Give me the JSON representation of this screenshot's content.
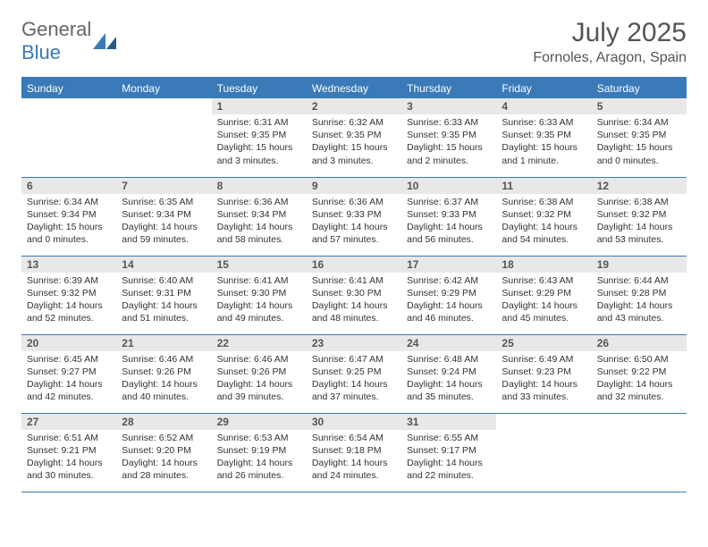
{
  "brand": {
    "general": "General",
    "blue": "Blue"
  },
  "title": "July 2025",
  "location": "Fornoles, Aragon, Spain",
  "colors": {
    "primary": "#3a7ab8",
    "daynum_bg": "#e8e8e8",
    "text": "#333333",
    "title_text": "#555555",
    "background": "#ffffff"
  },
  "typography": {
    "title_fontsize": 30,
    "location_fontsize": 16,
    "dayheader_fontsize": 12,
    "daynum_fontsize": 12,
    "cell_fontsize": 10.5
  },
  "calendar": {
    "type": "table",
    "columns": [
      "Sunday",
      "Monday",
      "Tuesday",
      "Wednesday",
      "Thursday",
      "Friday",
      "Saturday"
    ],
    "first_weekday_index": 2,
    "days": [
      {
        "n": 1,
        "sunrise": "6:31 AM",
        "sunset": "9:35 PM",
        "daylight": "15 hours and 3 minutes."
      },
      {
        "n": 2,
        "sunrise": "6:32 AM",
        "sunset": "9:35 PM",
        "daylight": "15 hours and 3 minutes."
      },
      {
        "n": 3,
        "sunrise": "6:33 AM",
        "sunset": "9:35 PM",
        "daylight": "15 hours and 2 minutes."
      },
      {
        "n": 4,
        "sunrise": "6:33 AM",
        "sunset": "9:35 PM",
        "daylight": "15 hours and 1 minute."
      },
      {
        "n": 5,
        "sunrise": "6:34 AM",
        "sunset": "9:35 PM",
        "daylight": "15 hours and 0 minutes."
      },
      {
        "n": 6,
        "sunrise": "6:34 AM",
        "sunset": "9:34 PM",
        "daylight": "15 hours and 0 minutes."
      },
      {
        "n": 7,
        "sunrise": "6:35 AM",
        "sunset": "9:34 PM",
        "daylight": "14 hours and 59 minutes."
      },
      {
        "n": 8,
        "sunrise": "6:36 AM",
        "sunset": "9:34 PM",
        "daylight": "14 hours and 58 minutes."
      },
      {
        "n": 9,
        "sunrise": "6:36 AM",
        "sunset": "9:33 PM",
        "daylight": "14 hours and 57 minutes."
      },
      {
        "n": 10,
        "sunrise": "6:37 AM",
        "sunset": "9:33 PM",
        "daylight": "14 hours and 56 minutes."
      },
      {
        "n": 11,
        "sunrise": "6:38 AM",
        "sunset": "9:32 PM",
        "daylight": "14 hours and 54 minutes."
      },
      {
        "n": 12,
        "sunrise": "6:38 AM",
        "sunset": "9:32 PM",
        "daylight": "14 hours and 53 minutes."
      },
      {
        "n": 13,
        "sunrise": "6:39 AM",
        "sunset": "9:32 PM",
        "daylight": "14 hours and 52 minutes."
      },
      {
        "n": 14,
        "sunrise": "6:40 AM",
        "sunset": "9:31 PM",
        "daylight": "14 hours and 51 minutes."
      },
      {
        "n": 15,
        "sunrise": "6:41 AM",
        "sunset": "9:30 PM",
        "daylight": "14 hours and 49 minutes."
      },
      {
        "n": 16,
        "sunrise": "6:41 AM",
        "sunset": "9:30 PM",
        "daylight": "14 hours and 48 minutes."
      },
      {
        "n": 17,
        "sunrise": "6:42 AM",
        "sunset": "9:29 PM",
        "daylight": "14 hours and 46 minutes."
      },
      {
        "n": 18,
        "sunrise": "6:43 AM",
        "sunset": "9:29 PM",
        "daylight": "14 hours and 45 minutes."
      },
      {
        "n": 19,
        "sunrise": "6:44 AM",
        "sunset": "9:28 PM",
        "daylight": "14 hours and 43 minutes."
      },
      {
        "n": 20,
        "sunrise": "6:45 AM",
        "sunset": "9:27 PM",
        "daylight": "14 hours and 42 minutes."
      },
      {
        "n": 21,
        "sunrise": "6:46 AM",
        "sunset": "9:26 PM",
        "daylight": "14 hours and 40 minutes."
      },
      {
        "n": 22,
        "sunrise": "6:46 AM",
        "sunset": "9:26 PM",
        "daylight": "14 hours and 39 minutes."
      },
      {
        "n": 23,
        "sunrise": "6:47 AM",
        "sunset": "9:25 PM",
        "daylight": "14 hours and 37 minutes."
      },
      {
        "n": 24,
        "sunrise": "6:48 AM",
        "sunset": "9:24 PM",
        "daylight": "14 hours and 35 minutes."
      },
      {
        "n": 25,
        "sunrise": "6:49 AM",
        "sunset": "9:23 PM",
        "daylight": "14 hours and 33 minutes."
      },
      {
        "n": 26,
        "sunrise": "6:50 AM",
        "sunset": "9:22 PM",
        "daylight": "14 hours and 32 minutes."
      },
      {
        "n": 27,
        "sunrise": "6:51 AM",
        "sunset": "9:21 PM",
        "daylight": "14 hours and 30 minutes."
      },
      {
        "n": 28,
        "sunrise": "6:52 AM",
        "sunset": "9:20 PM",
        "daylight": "14 hours and 28 minutes."
      },
      {
        "n": 29,
        "sunrise": "6:53 AM",
        "sunset": "9:19 PM",
        "daylight": "14 hours and 26 minutes."
      },
      {
        "n": 30,
        "sunrise": "6:54 AM",
        "sunset": "9:18 PM",
        "daylight": "14 hours and 24 minutes."
      },
      {
        "n": 31,
        "sunrise": "6:55 AM",
        "sunset": "9:17 PM",
        "daylight": "14 hours and 22 minutes."
      }
    ],
    "labels": {
      "sunrise": "Sunrise:",
      "sunset": "Sunset:",
      "daylight": "Daylight:"
    }
  }
}
